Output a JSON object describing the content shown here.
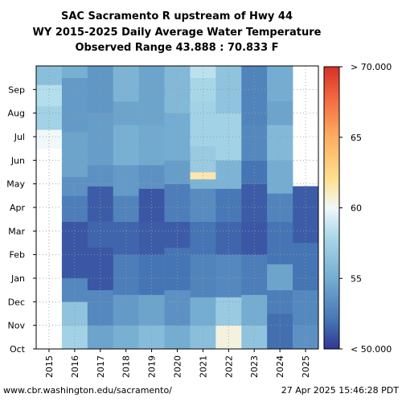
{
  "chart_data": {
    "type": "heatmap",
    "title_lines": [
      "SAC Sacramento R upstream of Hwy 44",
      "WY 2015-2025 Daily Average Water Temperature",
      "Observed Range 43.888 : 70.833 F"
    ],
    "xlabel": "",
    "ylabel": "",
    "x_categories": [
      "2015",
      "2016",
      "2017",
      "2018",
      "2019",
      "2020",
      "2021",
      "2022",
      "2023",
      "2024",
      "2025"
    ],
    "y_month_labels": [
      "Oct",
      "Nov",
      "Dec",
      "Jan",
      "Feb",
      "Mar",
      "Apr",
      "May",
      "Jun",
      "Jul",
      "Aug",
      "Sep"
    ],
    "y_range_months": [
      0,
      12
    ],
    "grid": "dotted",
    "value_units": "F",
    "color_range": [
      50,
      70
    ],
    "colorbar": {
      "ticks": [
        {
          "value": 50,
          "label": "< 50.000"
        },
        {
          "value": 55,
          "label": "55"
        },
        {
          "value": 60,
          "label": "60"
        },
        {
          "value": 65,
          "label": "65"
        },
        {
          "value": 70,
          "label": "> 70.000"
        }
      ],
      "placement": "right"
    },
    "columns": [
      {
        "year": "2015",
        "segments": [
          [
            8.5,
            9.3,
            60.0
          ],
          [
            9.3,
            10.3,
            57.5
          ],
          [
            10.3,
            11.2,
            58.3
          ],
          [
            11.2,
            12.0,
            56.2
          ]
        ]
      },
      {
        "year": "2016",
        "segments": [
          [
            0,
            1.0,
            57.5
          ],
          [
            1.0,
            2.0,
            56.5
          ],
          [
            2.0,
            3.0,
            53.0
          ],
          [
            3.0,
            5.4,
            51.0
          ],
          [
            5.4,
            6.5,
            52.5
          ],
          [
            6.5,
            7.3,
            53.5
          ],
          [
            7.3,
            9.2,
            54.5
          ],
          [
            9.2,
            11.5,
            54.0
          ],
          [
            11.5,
            12.0,
            55.2
          ]
        ]
      },
      {
        "year": "2017",
        "segments": [
          [
            0,
            1.0,
            54.5
          ],
          [
            1.0,
            2.5,
            53.0
          ],
          [
            2.5,
            4.3,
            51.0
          ],
          [
            4.3,
            5.4,
            51.5
          ],
          [
            5.4,
            6.9,
            51.2
          ],
          [
            6.9,
            7.8,
            53.5
          ],
          [
            7.8,
            10.0,
            54.2
          ],
          [
            10.0,
            12.0,
            53.8
          ]
        ]
      },
      {
        "year": "2018",
        "segments": [
          [
            0,
            1.0,
            55.2
          ],
          [
            1.0,
            2.3,
            54.0
          ],
          [
            2.3,
            4.0,
            52.5
          ],
          [
            4.0,
            5.4,
            51.5
          ],
          [
            5.4,
            6.5,
            52.8
          ],
          [
            6.5,
            7.8,
            54.0
          ],
          [
            7.8,
            9.5,
            55.2
          ],
          [
            9.5,
            10.5,
            54.5
          ],
          [
            10.5,
            12.0,
            55.5
          ]
        ]
      },
      {
        "year": "2019",
        "segments": [
          [
            0,
            1.0,
            56.0
          ],
          [
            1.0,
            2.3,
            54.5
          ],
          [
            2.3,
            4.0,
            52.0
          ],
          [
            4.0,
            5.4,
            51.2
          ],
          [
            5.4,
            6.8,
            51.0
          ],
          [
            6.8,
            7.8,
            53.5
          ],
          [
            7.8,
            9.5,
            54.8
          ],
          [
            9.5,
            12.0,
            54.5
          ]
        ]
      },
      {
        "year": "2020",
        "segments": [
          [
            0,
            1.0,
            55.0
          ],
          [
            1.0,
            2.5,
            53.5
          ],
          [
            2.5,
            4.3,
            52.0
          ],
          [
            4.3,
            5.4,
            51.2
          ],
          [
            5.4,
            7.0,
            52.5
          ],
          [
            7.0,
            8.0,
            54.2
          ],
          [
            8.0,
            10.0,
            55.0
          ],
          [
            10.0,
            12.0,
            55.8
          ]
        ]
      },
      {
        "year": "2021",
        "segments": [
          [
            0,
            1.0,
            56.2
          ],
          [
            1.0,
            2.2,
            55.0
          ],
          [
            2.2,
            4.0,
            52.8
          ],
          [
            4.0,
            5.4,
            52.0
          ],
          [
            5.4,
            6.8,
            53.2
          ],
          [
            6.8,
            7.2,
            55.5
          ],
          [
            7.2,
            7.5,
            61.5
          ],
          [
            7.5,
            8.6,
            57.0
          ],
          [
            8.6,
            10.5,
            57.5
          ],
          [
            10.5,
            11.5,
            57.8
          ],
          [
            11.5,
            12.0,
            58.5
          ]
        ]
      },
      {
        "year": "2022",
        "segments": [
          [
            0,
            1.0,
            60.5
          ],
          [
            1.0,
            2.2,
            57.0
          ],
          [
            2.2,
            4.0,
            53.0
          ],
          [
            4.0,
            5.4,
            51.5
          ],
          [
            5.4,
            6.8,
            52.2
          ],
          [
            6.8,
            8.0,
            55.5
          ],
          [
            8.0,
            10.0,
            57.5
          ],
          [
            10.0,
            12.0,
            56.5
          ]
        ]
      },
      {
        "year": "2023",
        "segments": [
          [
            0,
            1.0,
            56.5
          ],
          [
            1.0,
            2.3,
            55.0
          ],
          [
            2.3,
            4.0,
            52.5
          ],
          [
            4.0,
            5.4,
            51.0
          ],
          [
            5.4,
            7.0,
            51.2
          ],
          [
            7.0,
            8.0,
            52.0
          ],
          [
            8.0,
            9.5,
            53.0
          ],
          [
            9.5,
            12.0,
            52.8
          ]
        ]
      },
      {
        "year": "2024",
        "segments": [
          [
            0,
            1.5,
            51.8
          ],
          [
            1.5,
            2.5,
            52.5
          ],
          [
            2.5,
            3.6,
            54.5
          ],
          [
            3.6,
            5.4,
            52.0
          ],
          [
            5.4,
            6.6,
            52.8
          ],
          [
            6.6,
            8.0,
            55.0
          ],
          [
            8.0,
            9.5,
            55.8
          ],
          [
            9.5,
            10.5,
            54.5
          ],
          [
            10.5,
            12.0,
            55.0
          ]
        ]
      },
      {
        "year": "2025",
        "segments": [
          [
            0,
            1.0,
            53.5
          ],
          [
            1.0,
            2.5,
            53.0
          ],
          [
            2.5,
            4.5,
            52.0
          ],
          [
            4.5,
            6.9,
            51.2
          ]
        ]
      }
    ]
  },
  "footer": {
    "url": "www.cbr.washington.edu/sacramento/",
    "timestamp": "27 Apr 2025 15:46:28 PDT"
  }
}
